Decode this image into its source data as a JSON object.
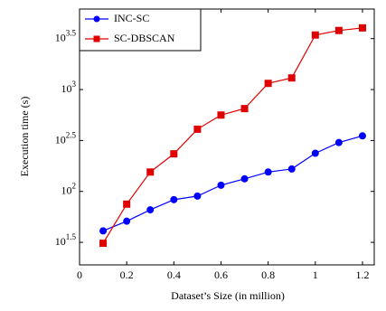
{
  "chart_data": {
    "type": "line",
    "xlabel": "Dataset’s Size (in million)",
    "ylabel": "Execution time (s)",
    "x": [
      0.1,
      0.2,
      0.3,
      0.4,
      0.5,
      0.6,
      0.7,
      0.8,
      0.9,
      1.0,
      1.1,
      1.2
    ],
    "series": [
      {
        "name": "INC-SC",
        "color": "#0000ff",
        "marker": "circle",
        "values": [
          41,
          51,
          66,
          83,
          90,
          115,
          133,
          155,
          166,
          237,
          302,
          351
        ]
      },
      {
        "name": "SC-DBSCAN",
        "color": "#e00000",
        "marker": "square",
        "values": [
          31,
          75,
          155,
          234,
          408,
          562,
          650,
          1150,
          1300,
          3430,
          3800,
          4030
        ]
      }
    ],
    "xlim": [
      0,
      1.25
    ],
    "xticks": [
      0,
      0.2,
      0.4,
      0.6,
      0.8,
      1,
      1.2
    ],
    "ylim": [
      19,
      6170
    ],
    "ylog": true,
    "yticks": [
      {
        "value": 31.6228,
        "label": "10^1.5"
      },
      {
        "value": 100,
        "label": "10^2"
      },
      {
        "value": 316.228,
        "label": "10^2.5"
      },
      {
        "value": 1000,
        "label": "10^3"
      },
      {
        "value": 3162.28,
        "label": "10^3.5"
      }
    ],
    "legend": "upper left"
  }
}
